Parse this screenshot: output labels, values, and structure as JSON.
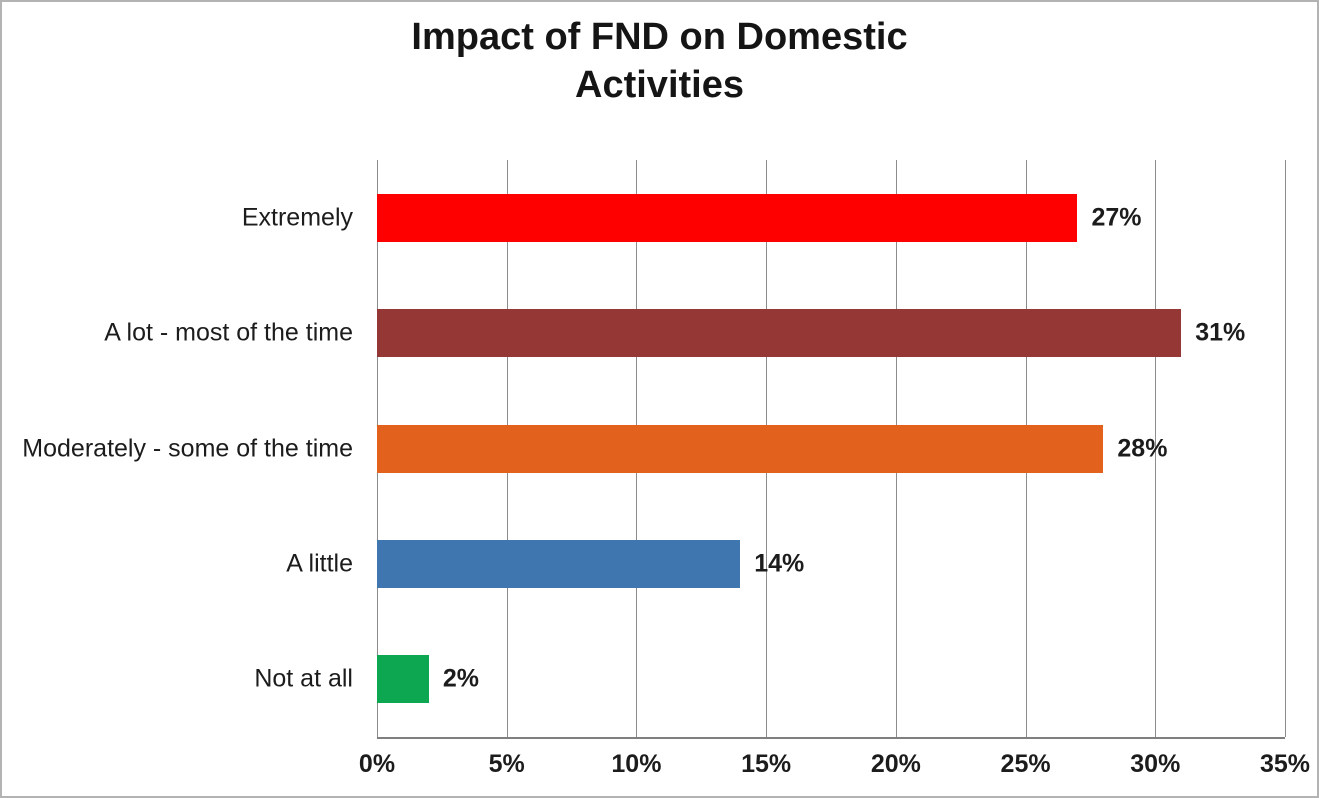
{
  "chart_data": {
    "type": "bar",
    "orientation": "horizontal",
    "title": "Impact of FND on Domestic Activities",
    "categories": [
      "Extremely",
      "A lot - most of the time",
      "Moderately - some of the time",
      "A little",
      "Not at all"
    ],
    "values": [
      27,
      31,
      28,
      14,
      2
    ],
    "value_labels": [
      "27%",
      "31%",
      "28%",
      "14%",
      "2%"
    ],
    "bar_colors": [
      "#fe0000",
      "#943735",
      "#e2611c",
      "#3f76b0",
      "#0ca750"
    ],
    "xlabel": "",
    "ylabel": "",
    "xlim": [
      0,
      35
    ],
    "x_tick_values": [
      0,
      5,
      10,
      15,
      20,
      25,
      30,
      35
    ],
    "x_tick_labels": [
      "0%",
      "5%",
      "10%",
      "15%",
      "20%",
      "25%",
      "30%",
      "35%"
    ],
    "grid": "vertical-gridlines-on",
    "legend": "none",
    "colors": {
      "gridline": "#8c8c8c",
      "axis_line": "#7f7f7f",
      "text": "#1c1c1c",
      "background": "#ffffff",
      "frame_border": "#b3b3b3"
    }
  }
}
